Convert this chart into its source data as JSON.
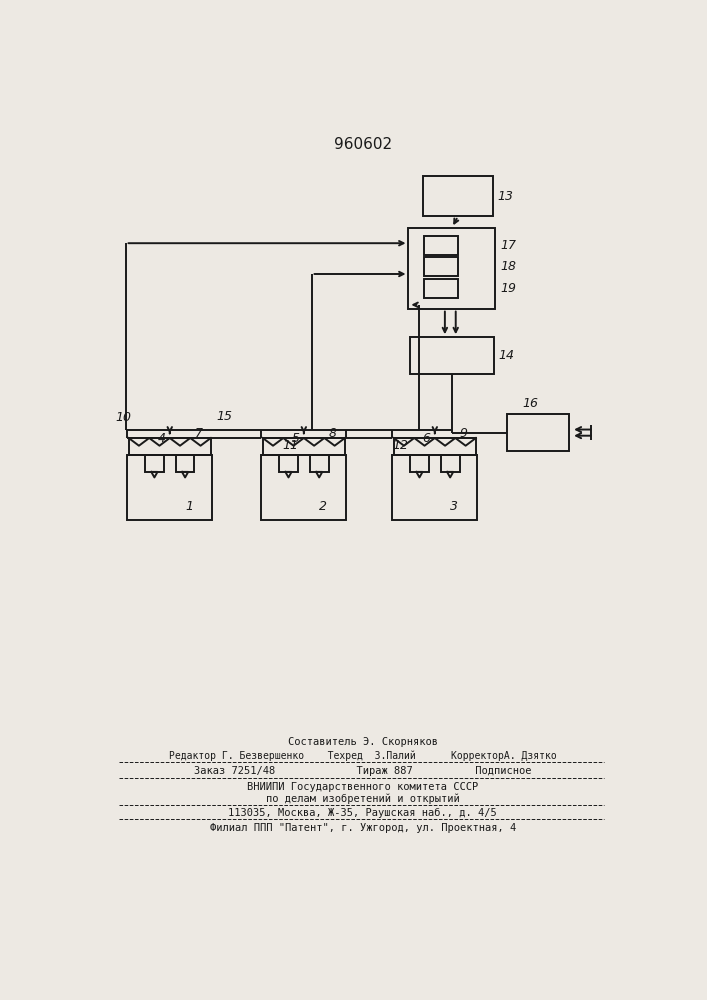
{
  "patent_number": "960602",
  "bg": "#ede9e3",
  "lc": "#1a1a1a",
  "footer_lines": [
    "Составитель Э. Скорняков",
    "Редактор Г. Безвершенко    Техред  З.Палий      КорректорА. Дзятко",
    "Заказ 7251/48             Тираж 887          Подписное",
    "ВНИИПИ Государственного комитета СССР",
    "по делам изобретений и открытий",
    "113035, Москва, Ж-35, Раушская наб., д. 4/5",
    "Филиал ППП \"Патент\", г. Ужгород, ул. Проектная, 4"
  ]
}
